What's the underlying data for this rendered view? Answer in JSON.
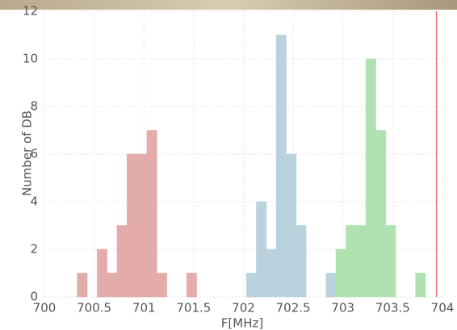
{
  "chart_data": {
    "type": "histogram",
    "x_label": "F[MHz]",
    "y_label": "Number of DB",
    "bins": [
      700.33,
      700.43,
      700.53,
      700.63,
      700.73,
      700.83,
      700.93,
      701.03,
      701.13,
      701.23,
      701.33,
      701.43,
      701.53,
      701.63,
      701.73,
      701.83,
      701.93,
      702.03,
      702.13,
      702.23,
      702.33,
      702.43,
      702.53,
      702.63,
      702.73,
      702.83,
      702.93,
      703.03,
      703.13,
      703.23,
      703.33,
      703.43,
      703.53,
      703.63,
      703.73,
      703.83
    ],
    "series": [
      {
        "color": "#f5b8b8",
        "values": [
          1,
          0,
          2,
          1,
          3,
          6,
          6,
          7,
          1,
          0,
          0,
          1,
          0,
          0,
          0,
          0,
          0,
          0,
          0,
          0,
          0,
          0,
          0,
          0,
          0,
          0,
          0,
          0,
          0,
          0,
          0,
          0,
          0,
          0,
          0
        ]
      },
      {
        "color": "#c8e2ef",
        "values": [
          0,
          0,
          0,
          0,
          0,
          0,
          0,
          0,
          0,
          0,
          0,
          0,
          0,
          0,
          0,
          0,
          0,
          1,
          4,
          2,
          11,
          6,
          3,
          0,
          0,
          1,
          0,
          0,
          0,
          0,
          0,
          0,
          0,
          0,
          0
        ]
      },
      {
        "color": "#bdf2bd",
        "values": [
          0,
          0,
          0,
          0,
          0,
          0,
          0,
          0,
          0,
          0,
          0,
          0,
          0,
          0,
          0,
          0,
          0,
          0,
          0,
          0,
          0,
          0,
          0,
          0,
          0,
          0,
          2,
          3,
          3,
          10,
          7,
          3,
          0,
          0,
          1
        ]
      }
    ],
    "vline": 703.94,
    "vline_color": "#f07070",
    "xlim": [
      700,
      704
    ],
    "xticks": [
      700,
      700.5,
      701,
      701.5,
      702,
      702.5,
      703,
      703.5,
      704
    ],
    "ylim": [
      0,
      12
    ],
    "yticks": [
      0,
      2,
      4,
      6,
      8,
      10,
      12
    ],
    "grid": true
  }
}
